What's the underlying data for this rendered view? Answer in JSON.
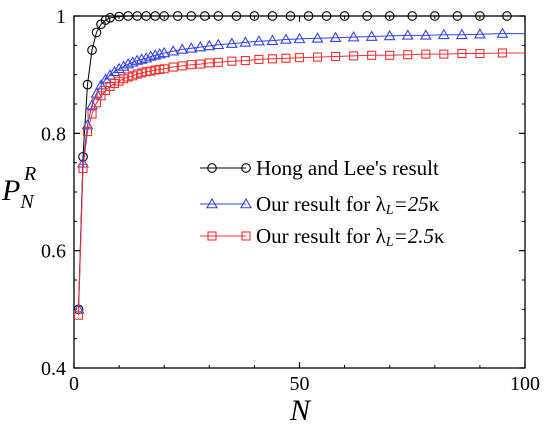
{
  "chart_data": {
    "type": "line",
    "xlabel": "N",
    "ylabel_main": "P",
    "ylabel_sub": "N",
    "ylabel_sup": "R",
    "xlim": [
      0,
      100
    ],
    "ylim": [
      0.4,
      1.0
    ],
    "xticks": [
      0,
      50,
      100
    ],
    "yticks": [
      0.4,
      0.6,
      0.8,
      1.0
    ],
    "xtick_labels": [
      "0",
      "50",
      "100"
    ],
    "ytick_labels": [
      "0.4",
      "0.6",
      "0.8",
      "1"
    ],
    "grid": false,
    "legend_position": "right",
    "series": [
      {
        "name": "Hong and Lee's result",
        "marker": "circle",
        "color": "#000000",
        "x": [
          1,
          2,
          3,
          4,
          5,
          6,
          7,
          8,
          10,
          12,
          14,
          16,
          18,
          20,
          23,
          26,
          29,
          32,
          36,
          40,
          44,
          48,
          52,
          56,
          60,
          65,
          70,
          75,
          80,
          85,
          90,
          96
        ],
        "y": [
          0.5,
          0.76,
          0.883,
          0.942,
          0.972,
          0.986,
          0.993,
          0.997,
          0.999,
          1.0,
          1.0,
          1.0,
          1.0,
          1.0,
          1.0,
          1.0,
          1.0,
          1.0,
          1.0,
          1.0,
          1.0,
          1.0,
          1.0,
          1.0,
          1.0,
          1.0,
          1.0,
          1.0,
          1.0,
          1.0,
          1.0,
          1.0
        ]
      },
      {
        "name_prefix": "Our result for ",
        "name_sym": "λ",
        "name_sub": "L",
        "name_value": "=25",
        "name_unit": "κ",
        "marker": "triangle",
        "color": "#3344dd",
        "x": [
          1,
          2,
          3,
          4,
          5,
          6,
          7,
          8,
          9,
          10,
          11,
          12,
          13,
          14,
          15,
          16,
          17,
          18,
          19,
          20,
          22,
          24,
          26,
          28,
          30,
          32,
          35,
          38,
          41,
          44,
          47,
          50,
          54,
          58,
          62,
          66,
          70,
          74,
          78,
          82,
          86,
          90,
          95
        ],
        "y": [
          0.5,
          0.749,
          0.814,
          0.848,
          0.868,
          0.882,
          0.892,
          0.899,
          0.905,
          0.91,
          0.914,
          0.918,
          0.921,
          0.924,
          0.926,
          0.928,
          0.931,
          0.933,
          0.935,
          0.937,
          0.94,
          0.943,
          0.945,
          0.947,
          0.949,
          0.951,
          0.953,
          0.955,
          0.957,
          0.958,
          0.96,
          0.961,
          0.962,
          0.963,
          0.964,
          0.965,
          0.966,
          0.967,
          0.967,
          0.968,
          0.968,
          0.969,
          0.97
        ]
      },
      {
        "name_prefix": "Our result for ",
        "name_sym": "λ",
        "name_sub": "L",
        "name_value": "=2.5",
        "name_unit": "κ",
        "marker": "square",
        "color": "#ee3333",
        "x": [
          1,
          2,
          3,
          4,
          5,
          6,
          7,
          8,
          9,
          10,
          11,
          12,
          13,
          14,
          15,
          16,
          17,
          18,
          19,
          20,
          22,
          24,
          26,
          28,
          30,
          32,
          35,
          38,
          41,
          44,
          47,
          50,
          54,
          58,
          62,
          66,
          70,
          74,
          78,
          82,
          86,
          90,
          95
        ],
        "y": [
          0.49,
          0.74,
          0.803,
          0.833,
          0.852,
          0.864,
          0.873,
          0.88,
          0.885,
          0.889,
          0.893,
          0.896,
          0.898,
          0.901,
          0.903,
          0.905,
          0.906,
          0.908,
          0.909,
          0.91,
          0.913,
          0.915,
          0.917,
          0.918,
          0.92,
          0.921,
          0.923,
          0.924,
          0.926,
          0.927,
          0.928,
          0.929,
          0.93,
          0.931,
          0.932,
          0.933,
          0.933,
          0.934,
          0.935,
          0.935,
          0.936,
          0.936,
          0.937
        ]
      }
    ]
  }
}
